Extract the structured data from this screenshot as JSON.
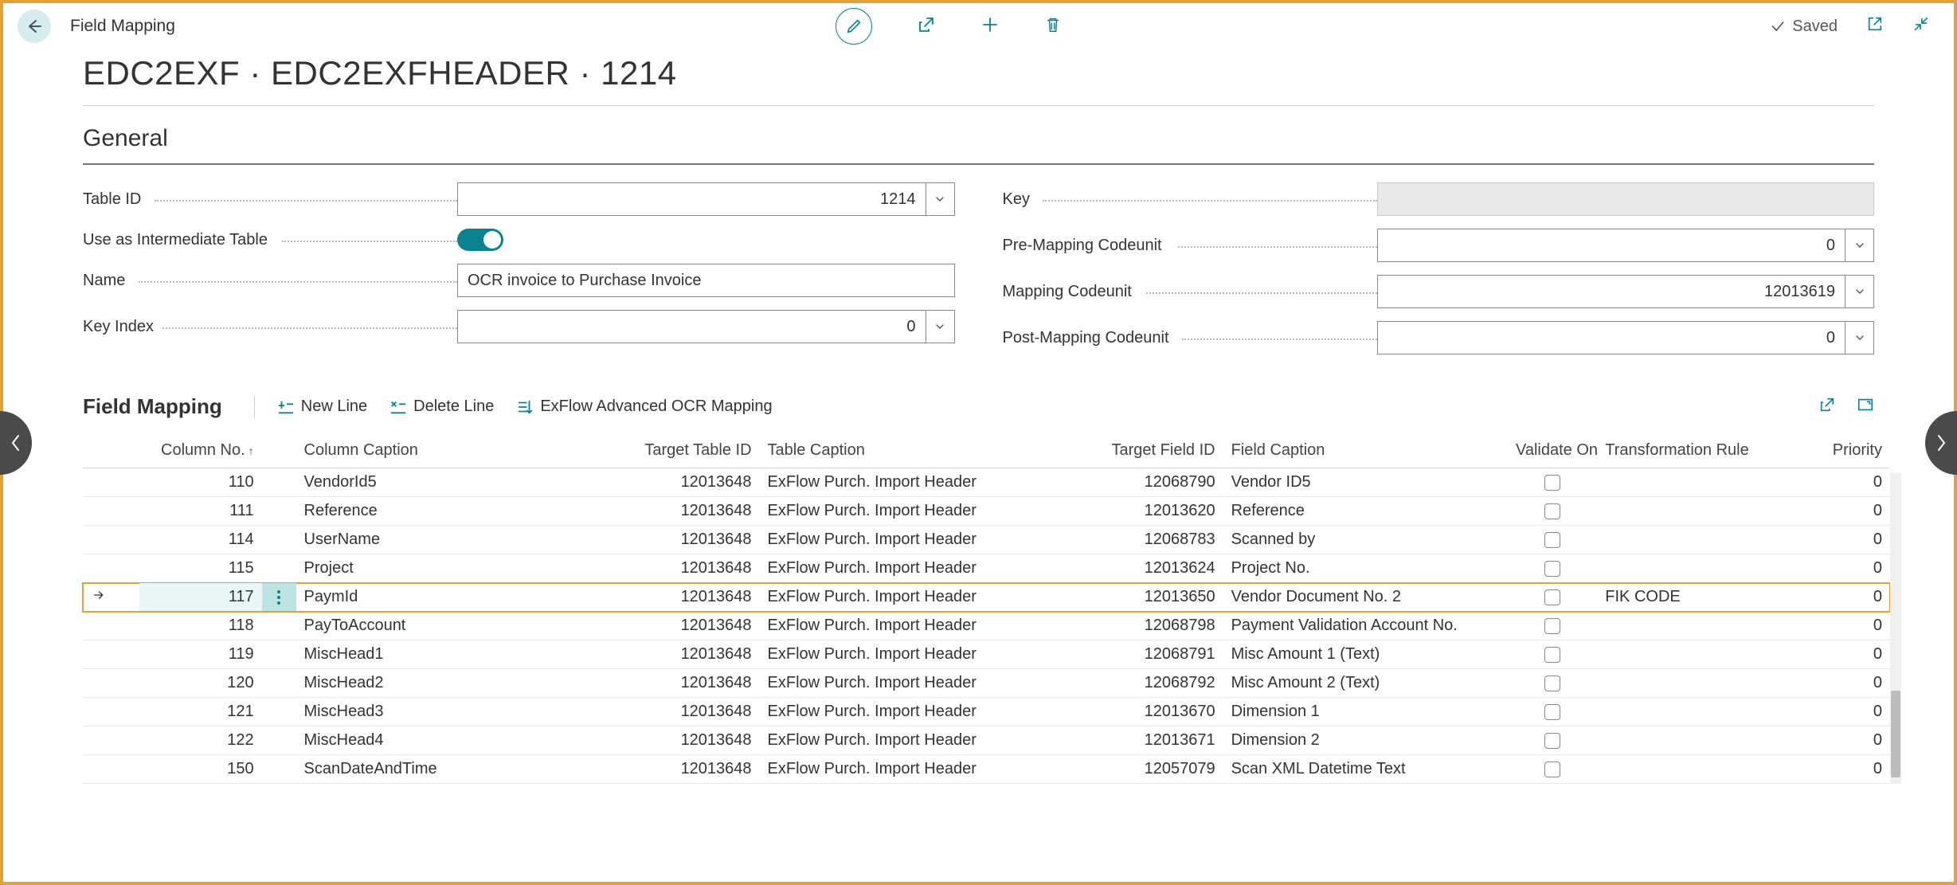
{
  "colors": {
    "accent": "#0b8290",
    "frame_border": "#e2a23a",
    "back_circle": "#d6ecee",
    "selected_highlight": "#bde3e3"
  },
  "header": {
    "breadcrumb": "Field Mapping",
    "page_title": "EDC2EXF · EDC2EXFHEADER · 1214",
    "saved_label": "Saved"
  },
  "general": {
    "section_title": "General",
    "left": [
      {
        "label": "Table ID",
        "value": "1214",
        "kind": "dropdown-number",
        "dots": 90
      },
      {
        "label": "Use as Intermediate Table",
        "value": true,
        "kind": "toggle",
        "dots": 250
      },
      {
        "label": "Name",
        "value": "OCR invoice to Purchase Invoice",
        "kind": "text",
        "dots": 70
      },
      {
        "label": "Key Index",
        "value": "0",
        "kind": "dropdown-number",
        "dots": 100
      }
    ],
    "right": [
      {
        "label": "Key",
        "value": "",
        "kind": "readonly",
        "dots": 50
      },
      {
        "label": "Pre-Mapping Codeunit",
        "value": "0",
        "kind": "dropdown-number",
        "dots": 220
      },
      {
        "label": "Mapping Codeunit",
        "value": "12013619",
        "kind": "dropdown-number",
        "dots": 180
      },
      {
        "label": "Post-Mapping Codeunit",
        "value": "0",
        "kind": "dropdown-number",
        "dots": 225
      }
    ]
  },
  "mapping": {
    "section_title": "Field Mapping",
    "actions": {
      "new_line": "New Line",
      "delete_line": "Delete Line",
      "advanced": "ExFlow Advanced OCR Mapping"
    },
    "columns": {
      "col_no": "Column No.",
      "col_caption": "Column Caption",
      "target_table_id": "Target Table ID",
      "table_caption": "Table Caption",
      "target_field_id": "Target Field ID",
      "field_caption": "Field Caption",
      "validate_only": "Validate Only",
      "transformation_rule": "Transformation Rule",
      "priority": "Priority"
    },
    "rows": [
      {
        "col_no": 110,
        "col_caption": "VendorId5",
        "tti": 12013648,
        "tcap": "ExFlow Purch. Import Header",
        "tfi": 12068790,
        "fcap": "Vendor ID5",
        "validate": false,
        "tr": "",
        "priority": 0,
        "selected": false
      },
      {
        "col_no": 111,
        "col_caption": "Reference",
        "tti": 12013648,
        "tcap": "ExFlow Purch. Import Header",
        "tfi": 12013620,
        "fcap": "Reference",
        "validate": false,
        "tr": "",
        "priority": 0,
        "selected": false
      },
      {
        "col_no": 114,
        "col_caption": "UserName",
        "tti": 12013648,
        "tcap": "ExFlow Purch. Import Header",
        "tfi": 12068783,
        "fcap": "Scanned by",
        "validate": false,
        "tr": "",
        "priority": 0,
        "selected": false
      },
      {
        "col_no": 115,
        "col_caption": "Project",
        "tti": 12013648,
        "tcap": "ExFlow Purch. Import Header",
        "tfi": 12013624,
        "fcap": "Project No.",
        "validate": false,
        "tr": "",
        "priority": 0,
        "selected": false
      },
      {
        "col_no": 117,
        "col_caption": "PaymId",
        "tti": 12013648,
        "tcap": "ExFlow Purch. Import Header",
        "tfi": 12013650,
        "fcap": "Vendor Document No. 2",
        "validate": false,
        "tr": "FIK CODE",
        "priority": 0,
        "selected": true
      },
      {
        "col_no": 118,
        "col_caption": "PayToAccount",
        "tti": 12013648,
        "tcap": "ExFlow Purch. Import Header",
        "tfi": 12068798,
        "fcap": "Payment Validation Account No.",
        "validate": false,
        "tr": "",
        "priority": 0,
        "selected": false
      },
      {
        "col_no": 119,
        "col_caption": "MiscHead1",
        "tti": 12013648,
        "tcap": "ExFlow Purch. Import Header",
        "tfi": 12068791,
        "fcap": "Misc Amount 1 (Text)",
        "validate": false,
        "tr": "",
        "priority": 0,
        "selected": false
      },
      {
        "col_no": 120,
        "col_caption": "MiscHead2",
        "tti": 12013648,
        "tcap": "ExFlow Purch. Import Header",
        "tfi": 12068792,
        "fcap": "Misc Amount 2 (Text)",
        "validate": false,
        "tr": "",
        "priority": 0,
        "selected": false
      },
      {
        "col_no": 121,
        "col_caption": "MiscHead3",
        "tti": 12013648,
        "tcap": "ExFlow Purch. Import Header",
        "tfi": 12013670,
        "fcap": "Dimension 1",
        "validate": false,
        "tr": "",
        "priority": 0,
        "selected": false
      },
      {
        "col_no": 122,
        "col_caption": "MiscHead4",
        "tti": 12013648,
        "tcap": "ExFlow Purch. Import Header",
        "tfi": 12013671,
        "fcap": "Dimension 2",
        "validate": false,
        "tr": "",
        "priority": 0,
        "selected": false
      },
      {
        "col_no": 150,
        "col_caption": "ScanDateAndTime",
        "tti": 12013648,
        "tcap": "ExFlow Purch. Import Header",
        "tfi": 12057079,
        "fcap": "Scan XML Datetime Text",
        "validate": false,
        "tr": "",
        "priority": 0,
        "selected": false
      }
    ],
    "scrollbar": {
      "thumb_top_pct": 70,
      "thumb_height_pct": 28
    }
  }
}
